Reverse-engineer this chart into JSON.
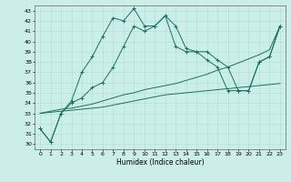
{
  "xlabel": "Humidex (Indice chaleur)",
  "background_color": "#cceee8",
  "grid_color": "#aadddd",
  "line_color": "#1a7060",
  "xlim": [
    -0.5,
    23.5
  ],
  "ylim": [
    29.5,
    43.5
  ],
  "yticks": [
    30,
    31,
    32,
    33,
    34,
    35,
    36,
    37,
    38,
    39,
    40,
    41,
    42,
    43
  ],
  "xticks": [
    0,
    1,
    2,
    3,
    4,
    5,
    6,
    7,
    8,
    9,
    10,
    11,
    12,
    13,
    14,
    15,
    16,
    17,
    18,
    19,
    20,
    21,
    22,
    23
  ],
  "series": [
    {
      "x": [
        0,
        1,
        2,
        3,
        4,
        5,
        6,
        7,
        8,
        9,
        10,
        11,
        12,
        13,
        14,
        15,
        16,
        17,
        18,
        19,
        20,
        21,
        22,
        23
      ],
      "y": [
        31.5,
        30.2,
        33.0,
        34.2,
        37.0,
        38.5,
        40.5,
        42.3,
        42.0,
        43.2,
        41.5,
        41.5,
        42.5,
        41.5,
        39.3,
        39.0,
        39.0,
        38.2,
        37.5,
        35.2,
        35.2,
        38.0,
        38.5,
        41.5
      ],
      "marker": true
    },
    {
      "x": [
        0,
        1,
        2,
        3,
        4,
        5,
        6,
        7,
        8,
        9,
        10,
        11,
        12,
        13,
        14,
        15,
        16,
        17,
        18,
        19,
        20,
        21,
        22,
        23
      ],
      "y": [
        31.5,
        30.2,
        33.0,
        34.0,
        34.5,
        35.5,
        36.0,
        37.5,
        39.5,
        41.5,
        41.0,
        41.5,
        42.5,
        39.5,
        39.0,
        39.0,
        38.2,
        37.5,
        35.2,
        35.2,
        35.2,
        38.0,
        38.5,
        41.5
      ],
      "marker": true
    },
    {
      "x": [
        0,
        1,
        2,
        3,
        4,
        5,
        6,
        7,
        8,
        9,
        10,
        11,
        12,
        13,
        14,
        15,
        16,
        17,
        18,
        19,
        20,
        21,
        22,
        23
      ],
      "y": [
        33.0,
        33.2,
        33.4,
        33.5,
        33.7,
        33.9,
        34.2,
        34.5,
        34.8,
        35.0,
        35.3,
        35.5,
        35.7,
        35.9,
        36.2,
        36.5,
        36.8,
        37.2,
        37.5,
        37.9,
        38.3,
        38.7,
        39.2,
        41.5
      ],
      "marker": false
    },
    {
      "x": [
        0,
        1,
        2,
        3,
        4,
        5,
        6,
        7,
        8,
        9,
        10,
        11,
        12,
        13,
        14,
        15,
        16,
        17,
        18,
        19,
        20,
        21,
        22,
        23
      ],
      "y": [
        33.0,
        33.1,
        33.2,
        33.3,
        33.4,
        33.5,
        33.6,
        33.8,
        34.0,
        34.2,
        34.4,
        34.6,
        34.8,
        34.9,
        35.0,
        35.1,
        35.2,
        35.3,
        35.4,
        35.5,
        35.6,
        35.7,
        35.8,
        35.9
      ],
      "marker": false
    }
  ]
}
